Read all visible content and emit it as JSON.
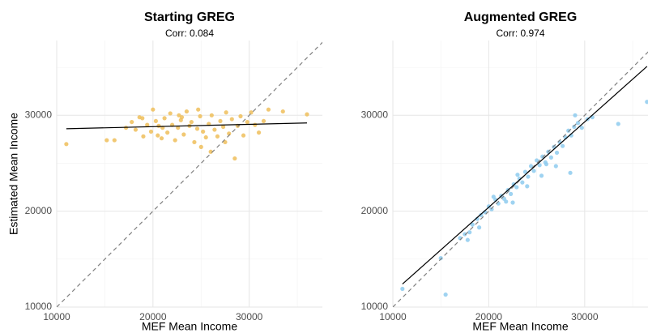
{
  "chart_data": [
    {
      "type": "scatter",
      "title": "Starting GREG",
      "subtitle": "Corr: 0.084",
      "x_label": "MEF Mean Income",
      "y_label": "Estimated Mean Income",
      "color": "#efbe5a",
      "x": [
        11000,
        15200,
        16000,
        17200,
        17800,
        18200,
        18600,
        19000,
        19400,
        19800,
        20000,
        20300,
        20600,
        20900,
        21200,
        21500,
        21800,
        22000,
        22300,
        22600,
        22900,
        23200,
        23500,
        23800,
        24000,
        24300,
        24600,
        24900,
        25200,
        25500,
        25800,
        26100,
        26400,
        26700,
        27000,
        27300,
        27600,
        27900,
        28200,
        28500,
        28800,
        29100,
        29400,
        29800,
        30200,
        30600,
        31000,
        31500,
        32000,
        33500,
        36000,
        18900,
        21000,
        23000,
        25000,
        26000,
        27500,
        24700,
        22700,
        20500
      ],
      "values": [
        27000,
        27400,
        27400,
        28700,
        29300,
        28500,
        29800,
        27800,
        29000,
        28300,
        30600,
        29400,
        28900,
        27600,
        29700,
        28200,
        30200,
        29000,
        27400,
        28700,
        29500,
        28000,
        30400,
        28900,
        29300,
        27200,
        28600,
        29900,
        28300,
        27700,
        29100,
        30000,
        28500,
        27800,
        29400,
        28800,
        30300,
        28100,
        29600,
        25500,
        28900,
        29900,
        27900,
        29300,
        30300,
        29000,
        28200,
        29400,
        30600,
        30400,
        30100,
        29700,
        28700,
        29800,
        26700,
        26200,
        27200,
        30600,
        30000,
        27900
      ],
      "fit_line": {
        "color": "#000000",
        "x": [
          11000,
          36000
        ],
        "values": [
          28600,
          29200
        ]
      },
      "reference_line": {
        "color": "#808080",
        "dashed": true,
        "x": [
          10000,
          37800
        ],
        "values": [
          10000,
          37800
        ]
      },
      "xlim": [
        10000,
        37600
      ],
      "ylim": [
        10000,
        37800
      ],
      "xticks": [
        10000,
        20000,
        30000
      ],
      "yticks": [
        10000,
        20000,
        30000
      ],
      "x_minor": [
        15000,
        25000,
        35000
      ],
      "y_minor": [
        15000,
        25000,
        35000
      ],
      "grid": true
    },
    {
      "type": "scatter",
      "title": "Augmented GREG",
      "subtitle": "Corr: 0.974",
      "x_label": "MEF Mean Income",
      "color": "#8ecbee",
      "x": [
        11000,
        15000,
        15500,
        17000,
        17500,
        18000,
        18300,
        18800,
        19200,
        19600,
        20000,
        20300,
        20700,
        21000,
        21300,
        21600,
        22000,
        22300,
        22600,
        22900,
        23200,
        23500,
        23800,
        24100,
        24400,
        24700,
        25000,
        25300,
        25600,
        25900,
        26200,
        26500,
        26800,
        27100,
        27400,
        27700,
        28000,
        28300,
        28600,
        28900,
        29300,
        29700,
        30300,
        30800,
        28500,
        27000,
        33500,
        36500,
        19000,
        21800,
        24000,
        25500,
        26000,
        23000,
        20500,
        17800,
        22500,
        29000
      ],
      "values": [
        11900,
        15100,
        11300,
        17200,
        17600,
        17800,
        18600,
        19200,
        19600,
        19900,
        20500,
        20200,
        21200,
        20800,
        21600,
        21300,
        22200,
        21800,
        22800,
        22500,
        23400,
        23000,
        24100,
        23600,
        24700,
        24200,
        25300,
        24800,
        25700,
        25100,
        26200,
        25600,
        26700,
        26100,
        27200,
        26800,
        27700,
        28400,
        27900,
        28800,
        29200,
        28700,
        29600,
        29800,
        24000,
        24700,
        29100,
        31400,
        18300,
        21000,
        22600,
        23700,
        24900,
        23800,
        21500,
        17000,
        20900,
        30000
      ],
      "fit_line": {
        "color": "#000000",
        "x": [
          11000,
          36500
        ],
        "values": [
          12400,
          35100
        ]
      },
      "reference_line": {
        "color": "#808080",
        "dashed": true,
        "x": [
          10000,
          37800
        ],
        "values": [
          10000,
          37800
        ]
      },
      "xlim": [
        10000,
        36600
      ],
      "ylim": [
        10000,
        37800
      ],
      "xticks": [
        10000,
        20000,
        30000
      ],
      "yticks": [
        10000,
        20000,
        30000
      ],
      "x_minor": [
        15000,
        25000,
        35000
      ],
      "y_minor": [
        15000,
        25000,
        35000
      ],
      "grid": true
    }
  ]
}
